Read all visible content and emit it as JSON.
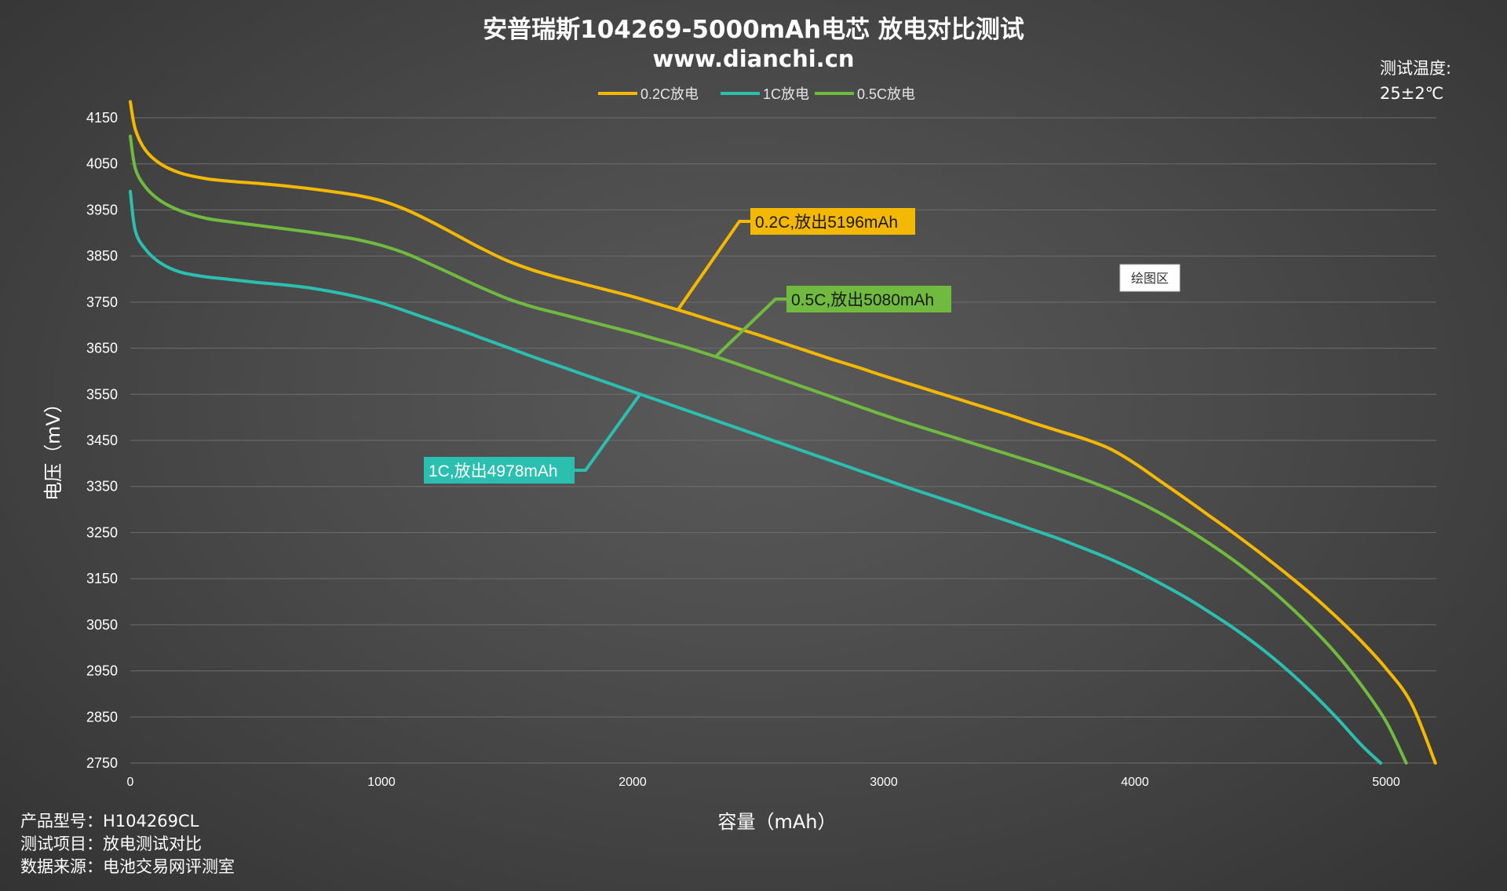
{
  "chart_data": {
    "type": "line",
    "title": "安普瑞斯104269-5000mAh电芯 放电对比测试",
    "subtitle": "www.dianchi.cn",
    "xlabel": "容量（mAh）",
    "ylabel": "电压（mV）",
    "xlim": [
      0,
      5200
    ],
    "ylim": [
      2750,
      4150
    ],
    "x_ticks": [
      "0",
      "1000",
      "2000",
      "3000",
      "4000",
      "5000"
    ],
    "y_ticks": [
      "4150",
      "4050",
      "3950",
      "3850",
      "3750",
      "3650",
      "3550",
      "3450",
      "3350",
      "3250",
      "3150",
      "3050",
      "2950",
      "2850",
      "2750"
    ],
    "grid": true,
    "legend_position": "top",
    "series": [
      {
        "name": "0.2C放电",
        "color": "#f5b800",
        "x": [
          0,
          20,
          60,
          120,
          200,
          300,
          400,
          500,
          600,
          700,
          800,
          900,
          1000,
          1100,
          1200,
          1300,
          1400,
          1500,
          1600,
          1700,
          1800,
          1900,
          2000,
          2100,
          2200,
          2300,
          2400,
          2500,
          2600,
          2700,
          2800,
          2900,
          3000,
          3100,
          3200,
          3300,
          3400,
          3500,
          3600,
          3700,
          3800,
          3900,
          4000,
          4100,
          4200,
          4300,
          4400,
          4500,
          4600,
          4700,
          4800,
          4900,
          5000,
          5100,
          5196
        ],
        "y": [
          4185,
          4125,
          4080,
          4050,
          4030,
          4018,
          4012,
          4008,
          4003,
          3997,
          3990,
          3982,
          3970,
          3950,
          3924,
          3895,
          3866,
          3840,
          3820,
          3804,
          3790,
          3776,
          3762,
          3746,
          3730,
          3713,
          3696,
          3679,
          3661,
          3643,
          3625,
          3608,
          3590,
          3573,
          3556,
          3539,
          3522,
          3505,
          3487,
          3470,
          3453,
          3432,
          3400,
          3362,
          3324,
          3285,
          3246,
          3205,
          3162,
          3117,
          3068,
          3015,
          2955,
          2880,
          2750
        ]
      },
      {
        "name": "1C放电",
        "color": "#2bbfb0",
        "x": [
          0,
          20,
          60,
          120,
          200,
          300,
          400,
          500,
          600,
          700,
          800,
          900,
          1000,
          1100,
          1200,
          1300,
          1400,
          1500,
          1600,
          1700,
          1800,
          1900,
          2000,
          2100,
          2200,
          2300,
          2400,
          2500,
          2600,
          2700,
          2800,
          2900,
          3000,
          3100,
          3200,
          3300,
          3400,
          3500,
          3600,
          3700,
          3800,
          3900,
          4000,
          4100,
          4200,
          4300,
          4400,
          4500,
          4600,
          4700,
          4800,
          4900,
          4978
        ],
        "y": [
          3990,
          3905,
          3865,
          3835,
          3815,
          3805,
          3799,
          3793,
          3788,
          3782,
          3773,
          3762,
          3748,
          3730,
          3711,
          3692,
          3672,
          3652,
          3632,
          3613,
          3594,
          3575,
          3556,
          3537,
          3518,
          3499,
          3480,
          3461,
          3442,
          3423,
          3404,
          3385,
          3366,
          3347,
          3329,
          3311,
          3292,
          3274,
          3255,
          3236,
          3215,
          3193,
          3168,
          3140,
          3110,
          3076,
          3040,
          3000,
          2955,
          2905,
          2850,
          2790,
          2750
        ]
      },
      {
        "name": "0.5C放电",
        "color": "#6fba3f",
        "x": [
          0,
          20,
          60,
          120,
          200,
          300,
          400,
          500,
          600,
          700,
          800,
          900,
          1000,
          1100,
          1200,
          1300,
          1400,
          1500,
          1600,
          1700,
          1800,
          1900,
          2000,
          2100,
          2200,
          2300,
          2400,
          2500,
          2600,
          2700,
          2800,
          2900,
          3000,
          3100,
          3200,
          3300,
          3400,
          3500,
          3600,
          3700,
          3800,
          3900,
          4000,
          4100,
          4200,
          4300,
          4400,
          4500,
          4600,
          4700,
          4800,
          4900,
          5000,
          5080
        ],
        "y": [
          4110,
          4040,
          4000,
          3970,
          3948,
          3932,
          3924,
          3917,
          3910,
          3903,
          3895,
          3886,
          3873,
          3855,
          3831,
          3806,
          3781,
          3758,
          3740,
          3726,
          3712,
          3698,
          3684,
          3669,
          3654,
          3637,
          3619,
          3600,
          3581,
          3562,
          3543,
          3524,
          3505,
          3487,
          3470,
          3453,
          3436,
          3419,
          3402,
          3384,
          3365,
          3344,
          3320,
          3292,
          3260,
          3225,
          3187,
          3145,
          3098,
          3046,
          2988,
          2920,
          2840,
          2750
        ]
      }
    ],
    "annotations": [
      {
        "text": "0.2C,放出5196mAh",
        "series": "0.2C放电",
        "color": "#f5b800",
        "text_color": "#1a1a1a",
        "anchor_x": 2180
      },
      {
        "text": "0.5C,放出5080mAh",
        "series": "0.5C放电",
        "color": "#6fba3f",
        "text_color": "#1a1a1a",
        "anchor_x": 2330
      },
      {
        "text": "1C,放出4978mAh",
        "series": "1C放电",
        "color": "#2bbfb0",
        "text_color": "#ffffff",
        "anchor_x": 2030
      }
    ],
    "temperature_label": "测试温度:",
    "temperature_value": "25±2℃",
    "plot_area_label": "绘图区"
  },
  "info": {
    "product": "产品型号：H104269CL",
    "item": "测试项目：放电测试对比",
    "source": "数据来源：电池交易网评测室"
  }
}
